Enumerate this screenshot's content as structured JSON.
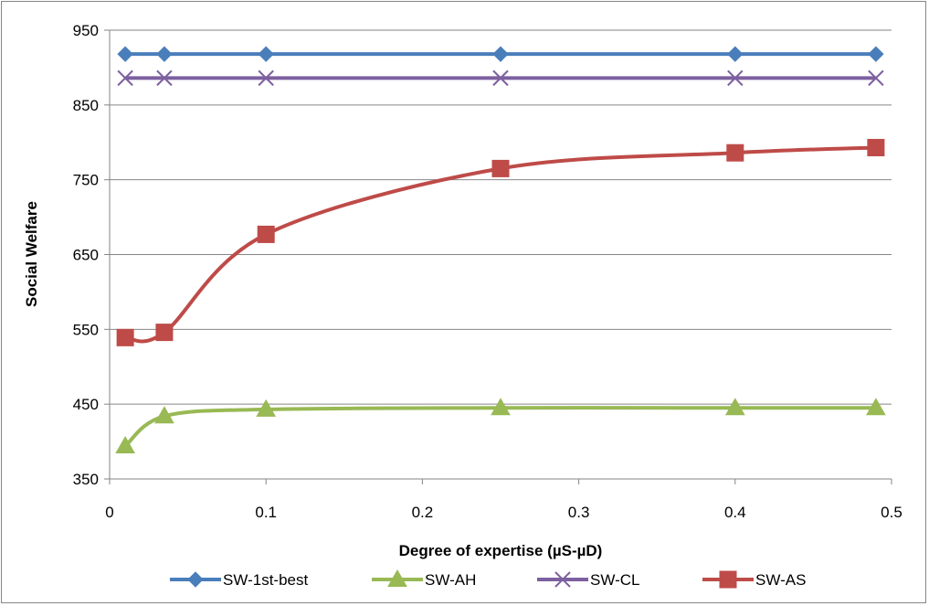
{
  "chart_data": {
    "type": "line",
    "title": "",
    "xlabel": "Degree of expertise (µS-µD)",
    "ylabel": "Social Welfare",
    "xlim": [
      0,
      0.5
    ],
    "ylim": [
      350,
      950
    ],
    "xticks": [
      0,
      0.1,
      0.2,
      0.3,
      0.4,
      0.5
    ],
    "xtick_labels": [
      "0",
      "0.1",
      "0.2",
      "0.3",
      "0.4",
      "0.5"
    ],
    "yticks": [
      350,
      450,
      550,
      650,
      750,
      850,
      950
    ],
    "ytick_labels": [
      "350",
      "450",
      "550",
      "650",
      "750",
      "850",
      "950"
    ],
    "grid": "horizontal major",
    "legend_position": "bottom",
    "x": [
      0.01,
      0.035,
      0.1,
      0.25,
      0.4,
      0.49
    ],
    "series": [
      {
        "name": "SW-1st-best",
        "color": "#4a7ebb",
        "marker": "diamond",
        "smooth": false,
        "values": [
          918,
          918,
          918,
          918,
          918,
          918
        ]
      },
      {
        "name": "SW-AH",
        "color": "#98b954",
        "marker": "triangle",
        "smooth": true,
        "values": [
          394,
          434,
          443,
          445,
          445,
          445
        ]
      },
      {
        "name": "SW-CL",
        "color": "#7d60a0",
        "marker": "x",
        "smooth": false,
        "values": [
          886,
          886,
          886,
          886,
          886,
          886
        ]
      },
      {
        "name": "SW-AS",
        "color": "#be4b48",
        "marker": "square",
        "smooth": true,
        "values": [
          539,
          546,
          677,
          765,
          786,
          793
        ]
      }
    ]
  }
}
